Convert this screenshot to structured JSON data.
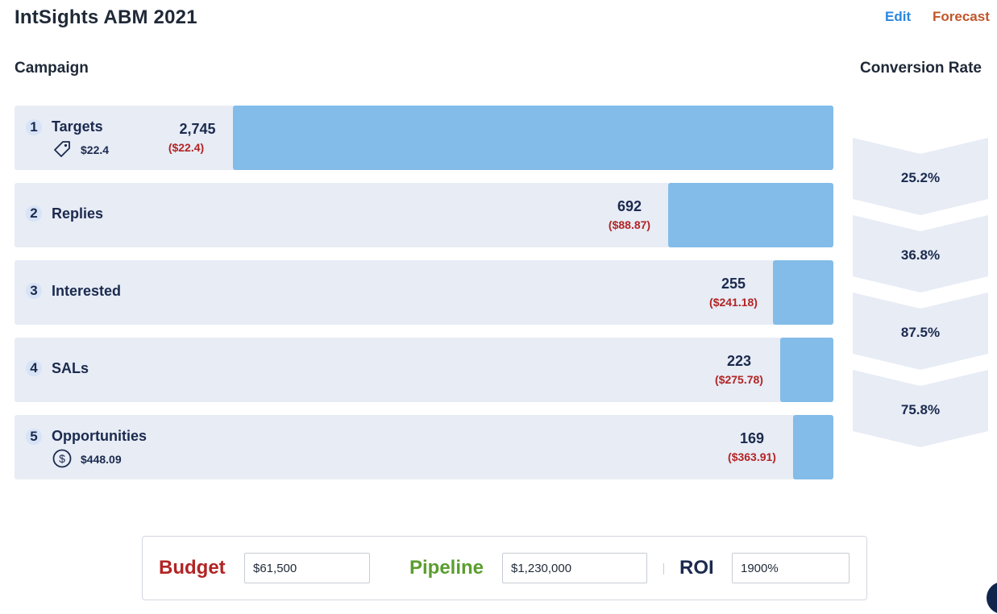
{
  "header": {
    "title": "IntSights ABM 2021",
    "edit_label": "Edit",
    "forecast_label": "Forecast"
  },
  "sections": {
    "campaign": "Campaign",
    "conversion_rate": "Conversion Rate"
  },
  "stages": [
    {
      "num": "1",
      "label": "Targets",
      "count": "2,745",
      "cost": "($22.4)",
      "sub_icon": "tag-icon",
      "sub_value": "$22.4",
      "share": 1.0
    },
    {
      "num": "2",
      "label": "Replies",
      "count": "692",
      "cost": "($88.87)",
      "share": 0.252
    },
    {
      "num": "3",
      "label": "Interested",
      "count": "255",
      "cost": "($241.18)",
      "share": 0.093
    },
    {
      "num": "4",
      "label": "SALs",
      "count": "223",
      "cost": "($275.78)",
      "share": 0.081
    },
    {
      "num": "5",
      "label": "Opportunities",
      "count": "169",
      "cost": "($363.91)",
      "sub_icon": "dollar-circle-icon",
      "sub_value": "$448.09",
      "share": 0.062
    }
  ],
  "conversion_rates": [
    "25.2%",
    "36.8%",
    "87.5%",
    "75.8%"
  ],
  "footer": {
    "budget_label": "Budget",
    "budget_value": "$61,500",
    "pipeline_label": "Pipeline",
    "pipeline_value": "$1,230,000",
    "roi_label": "ROI",
    "roi_value": "1900%"
  },
  "colors": {
    "bar": "#83bce8",
    "row_bg": "#e7ecf5",
    "cost_red": "#b32424",
    "budget_red": "#b32424",
    "pipeline_green": "#5b9e2f",
    "edit_blue": "#2a86e0",
    "forecast_orange": "#c0562a"
  }
}
